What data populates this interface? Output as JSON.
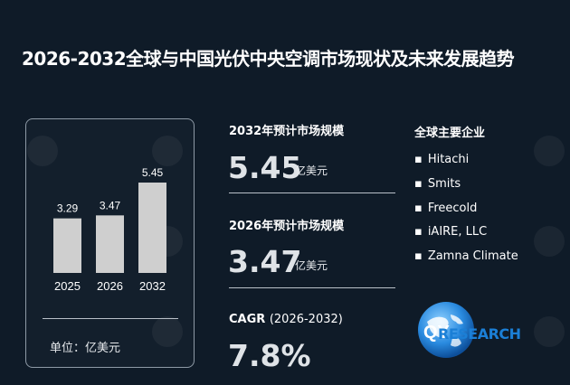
{
  "title": "2026-2032全球与中国光伏中央空调市场现状及未来发展趋势",
  "chart_data": {
    "type": "bar",
    "categories": [
      "2025",
      "2026",
      "2032"
    ],
    "values": [
      3.29,
      3.47,
      5.45
    ],
    "data_labels": [
      "3.29",
      "3.47",
      "5.45"
    ],
    "unit_label": "单位：亿美元",
    "bar_color": "#cfcfcf"
  },
  "stats": {
    "market_2032": {
      "label": "2032年预计市场规模",
      "value": "5.45",
      "unit": "亿美元"
    },
    "market_2026": {
      "label": "2026年预计市场规模",
      "value": "3.47",
      "unit": "亿美元"
    },
    "cagr": {
      "label": "CAGR",
      "period": "(2026-2032)",
      "value": "7.8%"
    }
  },
  "companies": {
    "title": "全球主要企业",
    "items": [
      "Hitachi",
      "Smits",
      "Freecold",
      "iAIRE, LLC",
      "Zamna Climate"
    ]
  },
  "logo": {
    "prefix": "QY",
    "suffix": "RESEARCH"
  }
}
